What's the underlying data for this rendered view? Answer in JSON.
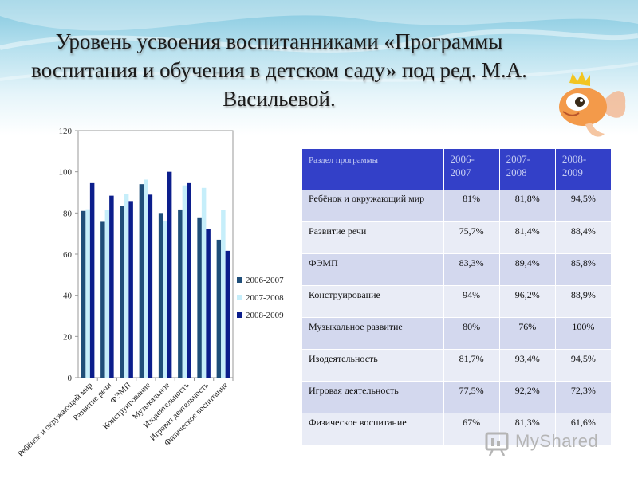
{
  "title": "Уровень усвоения воспитанниками «Программы воспитания и обучения в детском саду» под ред. М.А. Васильевой.",
  "watermark": "MyShared",
  "colors": {
    "series": [
      "#1f4e79",
      "#c6eefa",
      "#0c1e8c"
    ],
    "table_header": "#3340c8"
  },
  "chart_data": {
    "type": "bar",
    "categories": [
      "Ребёнок и окружающий мир",
      "Развитие речи",
      "ФЭМП",
      "Конструирование",
      "Музыкальное",
      "Изодеятельность",
      "Игровая деятельность",
      "Физическое воспитание"
    ],
    "series": [
      {
        "name": "2006-2007",
        "values": [
          81,
          75.7,
          83.3,
          94,
          80,
          81.7,
          77.5,
          67
        ]
      },
      {
        "name": "2007-2008",
        "values": [
          81.8,
          81.4,
          89.4,
          96.2,
          76,
          93.4,
          92.2,
          81.3
        ]
      },
      {
        "name": "2008-2009",
        "values": [
          94.5,
          88.4,
          85.8,
          88.9,
          100,
          94.5,
          72.3,
          61.6
        ]
      }
    ],
    "yticks": [
      "0",
      "20",
      "40",
      "60",
      "80",
      "100",
      "120"
    ],
    "ylim": [
      0,
      120
    ],
    "legend": "right",
    "grid": false
  },
  "table": {
    "header": "Раздел программы",
    "years": [
      "2006-2007",
      "2007-2008",
      "2008-2009"
    ],
    "rows": [
      {
        "label": "Ребёнок и окружающий мир",
        "v": [
          "81%",
          "81,8%",
          "94,5%"
        ]
      },
      {
        "label": "Развитие речи",
        "v": [
          "75,7%",
          "81,4%",
          "88,4%"
        ]
      },
      {
        "label": "ФЭМП",
        "v": [
          "83,3%",
          "89,4%",
          "85,8%"
        ]
      },
      {
        "label": "Конструирование",
        "v": [
          "94%",
          "96,2%",
          "88,9%"
        ]
      },
      {
        "label": "Музыкальное развитие",
        "v": [
          "80%",
          "76%",
          "100%"
        ]
      },
      {
        "label": "Изодеятельность",
        "v": [
          "81,7%",
          "93,4%",
          "94,5%"
        ]
      },
      {
        "label": "Игровая деятельность",
        "v": [
          "77,5%",
          "92,2%",
          "72,3%"
        ]
      },
      {
        "label": "Физическое воспитание",
        "v": [
          "67%",
          "81,3%",
          "61,6%"
        ]
      }
    ]
  }
}
